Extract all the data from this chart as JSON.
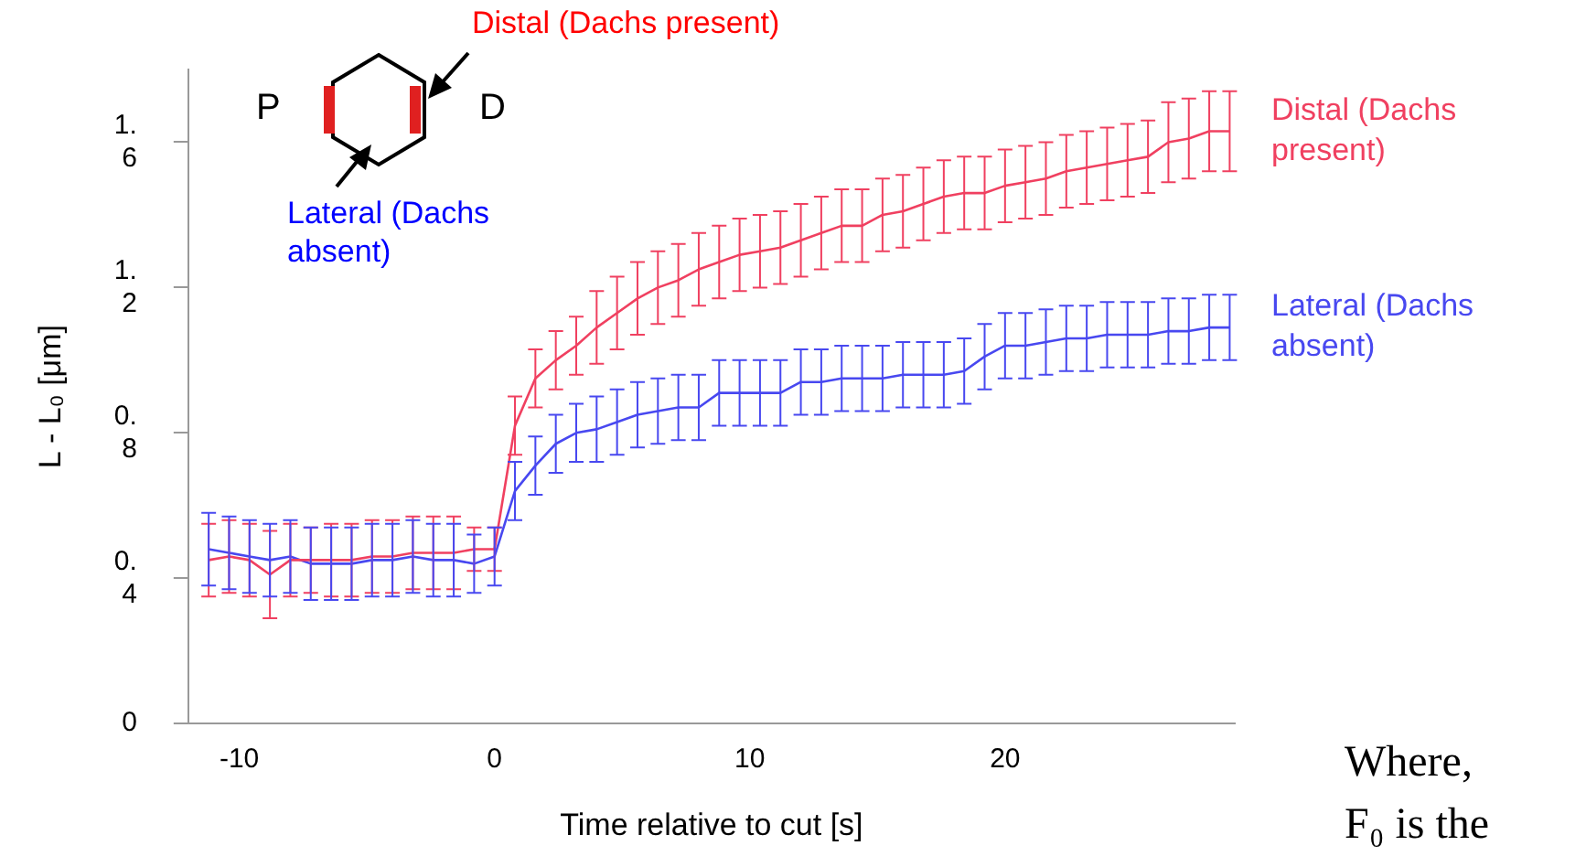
{
  "chart_data": {
    "type": "line",
    "xlabel": "Time relative to cut [s]",
    "ylabel": "L - L₀ [μm]",
    "x": [
      -11.2,
      -10.4,
      -9.6,
      -8.8,
      -8.0,
      -7.2,
      -6.4,
      -5.6,
      -4.8,
      -4.0,
      -3.2,
      -2.4,
      -1.6,
      -0.8,
      0,
      0.8,
      1.6,
      2.4,
      3.2,
      4.0,
      4.8,
      5.6,
      6.4,
      7.2,
      8.0,
      8.8,
      9.6,
      10.4,
      11.2,
      12.0,
      12.8,
      13.6,
      14.4,
      15.2,
      16.0,
      16.8,
      17.6,
      18.4,
      19.2,
      20.0,
      20.8,
      21.6,
      22.4,
      23.2,
      24.0,
      24.8,
      25.6,
      26.4,
      27.2,
      28.0,
      28.8
    ],
    "series": [
      {
        "name": "Distal (Dachs present)",
        "color": "#f04060",
        "values": [
          0.45,
          0.46,
          0.45,
          0.41,
          0.45,
          0.45,
          0.45,
          0.45,
          0.46,
          0.46,
          0.47,
          0.47,
          0.47,
          0.48,
          0.48,
          0.82,
          0.95,
          1.0,
          1.04,
          1.09,
          1.13,
          1.17,
          1.2,
          1.22,
          1.25,
          1.27,
          1.29,
          1.3,
          1.31,
          1.33,
          1.35,
          1.37,
          1.37,
          1.4,
          1.41,
          1.43,
          1.45,
          1.46,
          1.46,
          1.48,
          1.49,
          1.5,
          1.52,
          1.53,
          1.54,
          1.55,
          1.56,
          1.6,
          1.61,
          1.63,
          1.63
        ],
        "errors": [
          0.1,
          0.1,
          0.1,
          0.12,
          0.1,
          0.09,
          0.1,
          0.1,
          0.1,
          0.1,
          0.1,
          0.1,
          0.1,
          0.06,
          0.06,
          0.08,
          0.08,
          0.08,
          0.08,
          0.1,
          0.1,
          0.1,
          0.1,
          0.1,
          0.1,
          0.1,
          0.1,
          0.1,
          0.1,
          0.1,
          0.1,
          0.1,
          0.1,
          0.1,
          0.1,
          0.1,
          0.1,
          0.1,
          0.1,
          0.1,
          0.1,
          0.1,
          0.1,
          0.1,
          0.1,
          0.1,
          0.1,
          0.11,
          0.11,
          0.11,
          0.11
        ]
      },
      {
        "name": "Lateral (Dachs absent)",
        "color": "#4848f0",
        "values": [
          0.48,
          0.47,
          0.46,
          0.45,
          0.46,
          0.44,
          0.44,
          0.44,
          0.45,
          0.45,
          0.46,
          0.45,
          0.45,
          0.44,
          0.46,
          0.64,
          0.71,
          0.77,
          0.8,
          0.81,
          0.83,
          0.85,
          0.86,
          0.87,
          0.87,
          0.91,
          0.91,
          0.91,
          0.91,
          0.94,
          0.94,
          0.95,
          0.95,
          0.95,
          0.96,
          0.96,
          0.96,
          0.97,
          1.01,
          1.04,
          1.04,
          1.05,
          1.06,
          1.06,
          1.07,
          1.07,
          1.07,
          1.08,
          1.08,
          1.09,
          1.09
        ],
        "errors": [
          0.1,
          0.1,
          0.1,
          0.1,
          0.1,
          0.1,
          0.1,
          0.1,
          0.1,
          0.1,
          0.1,
          0.1,
          0.1,
          0.08,
          0.08,
          0.08,
          0.08,
          0.08,
          0.08,
          0.09,
          0.09,
          0.09,
          0.09,
          0.09,
          0.09,
          0.09,
          0.09,
          0.09,
          0.09,
          0.09,
          0.09,
          0.09,
          0.09,
          0.09,
          0.09,
          0.09,
          0.09,
          0.09,
          0.09,
          0.09,
          0.09,
          0.09,
          0.09,
          0.09,
          0.09,
          0.09,
          0.09,
          0.09,
          0.09,
          0.09,
          0.09
        ]
      }
    ],
    "xlim": [
      -12,
      29
    ],
    "xticks": [
      -10,
      0,
      10,
      20
    ],
    "ylim": [
      0,
      1.8
    ],
    "yticks": [
      0,
      0.4,
      0.8,
      1.2,
      1.6
    ],
    "grid": false,
    "legend": false,
    "marker": "none",
    "line_style": "solid",
    "annotations": [
      "Distal (Dachs present)",
      "P",
      "D",
      "Lateral (Dachs absent)",
      "Where,",
      "F₀ is the"
    ]
  }
}
